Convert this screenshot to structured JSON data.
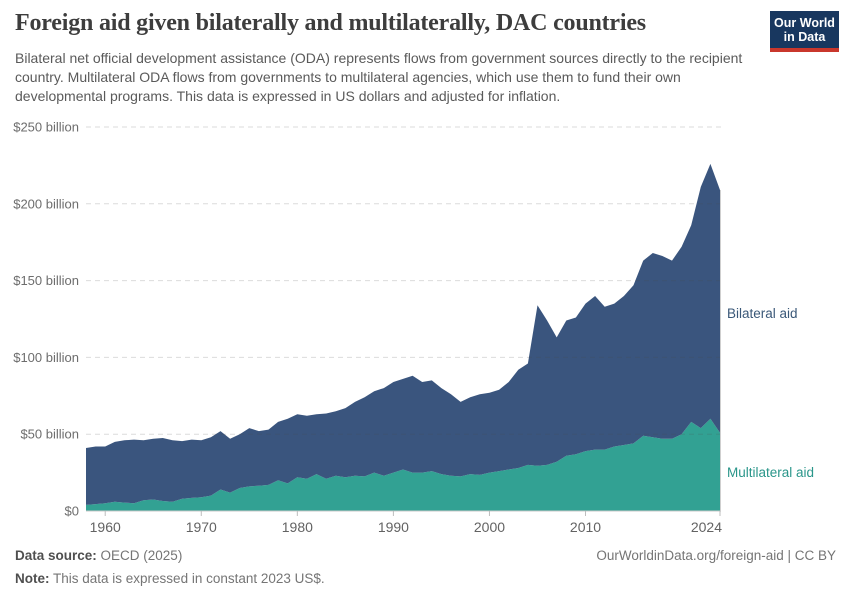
{
  "header": {
    "title": "Foreign aid given bilaterally and multilaterally, DAC countries",
    "subtitle": "Bilateral net official development assistance (ODA) represents flows from government sources directly to the recipient country. Multilateral ODA flows from governments to multilateral agencies, which use them to fund their own developmental programs. This data is expressed in US dollars and adjusted for inflation.",
    "logo": {
      "line1": "Our World",
      "line2": "in Data",
      "bg_color": "#18375f",
      "stripe_color": "#c9372c"
    }
  },
  "chart_data": {
    "type": "area",
    "stacked": true,
    "title": "Foreign aid given bilaterally and multilaterally, DAC countries",
    "unit": "US$ billion, constant 2023 prices",
    "xlim": [
      1958,
      2024
    ],
    "ylim": [
      0,
      250
    ],
    "grid": "horizontal-dashed",
    "legend_position": "right-of-plot",
    "x": [
      1958,
      1959,
      1960,
      1961,
      1962,
      1963,
      1964,
      1965,
      1966,
      1967,
      1968,
      1969,
      1970,
      1971,
      1972,
      1973,
      1974,
      1975,
      1976,
      1977,
      1978,
      1979,
      1980,
      1981,
      1982,
      1983,
      1984,
      1985,
      1986,
      1987,
      1988,
      1989,
      1990,
      1991,
      1992,
      1993,
      1994,
      1995,
      1996,
      1997,
      1998,
      1999,
      2000,
      2001,
      2002,
      2003,
      2004,
      2005,
      2006,
      2007,
      2008,
      2009,
      2010,
      2011,
      2012,
      2013,
      2014,
      2015,
      2016,
      2017,
      2018,
      2019,
      2020,
      2021,
      2022,
      2023,
      2024
    ],
    "series": [
      {
        "name": "Bilateral aid",
        "color": "#3a557e",
        "label_color": "#3a5878",
        "values": [
          37,
          37.5,
          37,
          39,
          40.5,
          41.5,
          39,
          39.5,
          41,
          40,
          37.5,
          38,
          37,
          38,
          38,
          35,
          35,
          38,
          35.5,
          36,
          38,
          42,
          41,
          41,
          39,
          42.5,
          42,
          45,
          48,
          51.5,
          53,
          57,
          59,
          59,
          63,
          59,
          59,
          56,
          53,
          48.5,
          50,
          52.5,
          52,
          53,
          57,
          64,
          66,
          104.5,
          94,
          81,
          88,
          89,
          96,
          100,
          93,
          93,
          97,
          103,
          114,
          120,
          119,
          116,
          122,
          128,
          157,
          166,
          158
        ]
      },
      {
        "name": "Multilateral aid",
        "color": "#32a193",
        "label_color": "#2a968a",
        "values": [
          4,
          4.5,
          5,
          6,
          5.5,
          5,
          7,
          7.5,
          6.5,
          6,
          8,
          8.5,
          9,
          10,
          14,
          12,
          15,
          16,
          16.5,
          17,
          20,
          18,
          22,
          21,
          24,
          21,
          23,
          22,
          23,
          22.5,
          25,
          23,
          25,
          27,
          25,
          25,
          26,
          24,
          23,
          22.5,
          24,
          23.5,
          25,
          26,
          27,
          28,
          30,
          29.5,
          30,
          32,
          36,
          37,
          39,
          40,
          40,
          42,
          43,
          44,
          49,
          48,
          47,
          47,
          50,
          58,
          54,
          60,
          51
        ]
      }
    ],
    "yticks": [
      {
        "value": 0,
        "label": "$0"
      },
      {
        "value": 50,
        "label": "$50 billion"
      },
      {
        "value": 100,
        "label": "$100 billion"
      },
      {
        "value": 150,
        "label": "$150 billion"
      },
      {
        "value": 200,
        "label": "$200 billion"
      },
      {
        "value": 250,
        "label": "$250 billion"
      }
    ],
    "xticks": [
      1960,
      1970,
      1980,
      1990,
      2000,
      2010,
      2024
    ]
  },
  "footer": {
    "source_label": "Data source:",
    "source_value": " OECD (2025)",
    "note_label": "Note:",
    "note_value": " This data is expressed in constant 2023 US$.",
    "link": "OurWorldinData.org/foreign-aid | CC BY"
  }
}
